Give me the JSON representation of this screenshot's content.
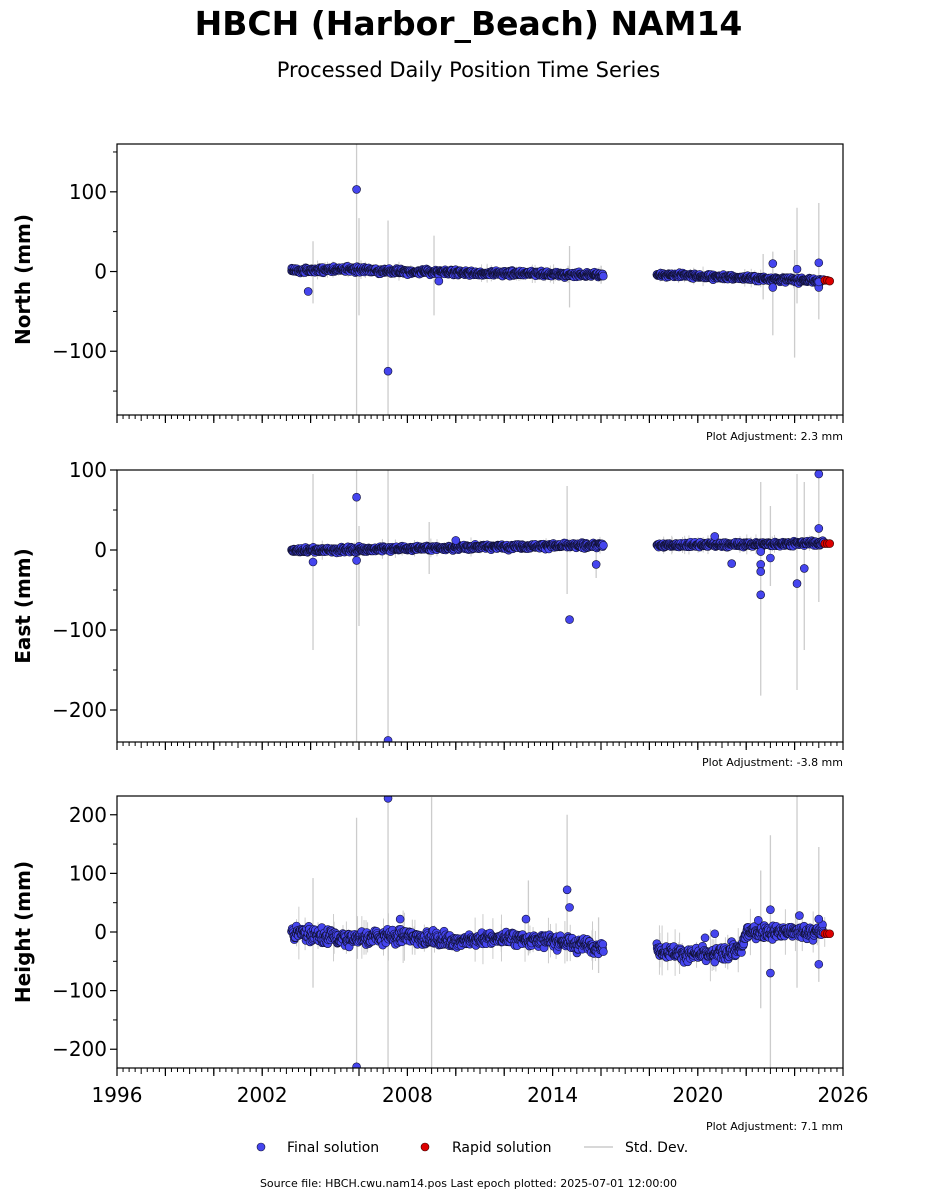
{
  "header": {
    "title": "HBCH (Harbor_Beach) NAM14",
    "subtitle": "Processed Daily Position Time Series"
  },
  "chart_data": [
    {
      "type": "scatter",
      "ylabel": "North (mm)",
      "xlim": [
        1996,
        2026
      ],
      "ylim": [
        -180,
        160
      ],
      "yticks": [
        100,
        0,
        -100
      ],
      "ytick_labels": [
        "100",
        "0",
        "−100"
      ],
      "adjustment": "Plot Adjustment: 2.3 mm",
      "trend": [
        [
          2003.2,
          1
        ],
        [
          2005.5,
          3
        ],
        [
          2008,
          0
        ],
        [
          2011,
          -2
        ],
        [
          2016,
          -4
        ],
        [
          2018.3,
          -4
        ],
        [
          2022,
          -8
        ],
        [
          2025.3,
          -12
        ]
      ],
      "scatter": 2.5,
      "outliers": [
        [
          2003.9,
          -25
        ],
        [
          2005.9,
          103
        ],
        [
          2007.2,
          -125
        ],
        [
          2009.3,
          -12
        ],
        [
          2023.1,
          10
        ],
        [
          2023.1,
          -20
        ],
        [
          2024.1,
          3
        ],
        [
          2025,
          11
        ],
        [
          2025,
          -20
        ],
        [
          2025,
          -13
        ]
      ],
      "errorbars": [
        [
          2004.1,
          -40,
          38
        ],
        [
          2005.9,
          -190,
          170
        ],
        [
          2006.0,
          -55,
          67
        ],
        [
          2007.2,
          -190,
          64
        ],
        [
          2009.1,
          -55,
          45
        ],
        [
          2014.7,
          -45,
          32
        ],
        [
          2022.7,
          -35,
          22
        ],
        [
          2023.1,
          -80,
          25
        ],
        [
          2024.0,
          -108,
          27
        ],
        [
          2024.1,
          -40,
          80
        ],
        [
          2025.0,
          -60,
          86
        ]
      ],
      "rapid": [
        [
          2025.25,
          -11
        ],
        [
          2025.35,
          -11
        ],
        [
          2025.45,
          -12
        ]
      ]
    },
    {
      "type": "scatter",
      "ylabel": "East (mm)",
      "xlim": [
        1996,
        2026
      ],
      "ylim": [
        -240,
        100
      ],
      "yticks": [
        100,
        0,
        -100,
        -200
      ],
      "ytick_labels": [
        "100",
        "0",
        "−100",
        "−200"
      ],
      "adjustment": "Plot Adjustment: -3.8 mm",
      "trend": [
        [
          2003.2,
          -1
        ],
        [
          2008,
          2
        ],
        [
          2011,
          4
        ],
        [
          2016,
          6
        ],
        [
          2018.3,
          6
        ],
        [
          2022,
          7
        ],
        [
          2025.3,
          9
        ]
      ],
      "scatter": 2.5,
      "outliers": [
        [
          2004.1,
          -15
        ],
        [
          2005.9,
          66
        ],
        [
          2005.9,
          -13
        ],
        [
          2007.2,
          -238
        ],
        [
          2010,
          12
        ],
        [
          2014.7,
          -87
        ],
        [
          2015.8,
          -18
        ],
        [
          2020.7,
          17
        ],
        [
          2021.4,
          -17
        ],
        [
          2022.6,
          -2
        ],
        [
          2022.6,
          -18
        ],
        [
          2022.6,
          -27
        ],
        [
          2022.6,
          -56
        ],
        [
          2023.0,
          -10
        ],
        [
          2024.1,
          -42
        ],
        [
          2024.4,
          -23
        ],
        [
          2025,
          95
        ],
        [
          2025,
          27
        ]
      ],
      "errorbars": [
        [
          2004.1,
          -125,
          95
        ],
        [
          2005.9,
          -250,
          110
        ],
        [
          2006.0,
          -95,
          30
        ],
        [
          2007.2,
          -250,
          110
        ],
        [
          2008.9,
          -30,
          35
        ],
        [
          2014.6,
          -55,
          80
        ],
        [
          2015.8,
          -35,
          10
        ],
        [
          2022.6,
          -182,
          85
        ],
        [
          2023.0,
          -45,
          55
        ],
        [
          2024.1,
          -175,
          95
        ],
        [
          2024.4,
          -125,
          85
        ],
        [
          2025,
          -65,
          100
        ]
      ],
      "rapid": [
        [
          2025.25,
          8
        ],
        [
          2025.35,
          8
        ],
        [
          2025.45,
          8
        ]
      ]
    },
    {
      "type": "scatter",
      "ylabel": "Height (mm)",
      "xlim": [
        1996,
        2026
      ],
      "ylim": [
        -232,
        232
      ],
      "yticks": [
        200,
        100,
        0,
        -100,
        -200
      ],
      "ytick_labels": [
        "200",
        "100",
        "0",
        "−100",
        "−200"
      ],
      "xticks": [
        1996,
        2002,
        2008,
        2014,
        2020,
        2026
      ],
      "xtick_labels": [
        "1996",
        "2002",
        "2008",
        "2014",
        "2020",
        "2026"
      ],
      "adjustment": "Plot Adjustment: 7.1 mm",
      "trend": [
        [
          2003.2,
          0
        ],
        [
          2005,
          -10
        ],
        [
          2008,
          -8
        ],
        [
          2010,
          -15
        ],
        [
          2012,
          -10
        ],
        [
          2014,
          -15
        ],
        [
          2016,
          -25
        ],
        [
          2018.3,
          -30
        ],
        [
          2019.5,
          -38
        ],
        [
          2020.5,
          -40
        ],
        [
          2021.8,
          -30
        ],
        [
          2022,
          0
        ],
        [
          2025.3,
          0
        ]
      ],
      "scatter": 9,
      "outliers": [
        [
          2005.9,
          -230
        ],
        [
          2007.2,
          228
        ],
        [
          2007.7,
          22
        ],
        [
          2012.9,
          22
        ],
        [
          2014.6,
          72
        ],
        [
          2014.7,
          42
        ],
        [
          2020.3,
          -10
        ],
        [
          2020.7,
          -3
        ],
        [
          2022.5,
          20
        ],
        [
          2023.0,
          38
        ],
        [
          2023.0,
          -70
        ],
        [
          2024.2,
          28
        ],
        [
          2025,
          22
        ],
        [
          2025,
          -55
        ]
      ],
      "errorbars": [
        [
          2004.1,
          -95,
          92
        ],
        [
          2005.9,
          -250,
          195
        ],
        [
          2007.2,
          -250,
          230
        ],
        [
          2009.0,
          -250,
          230
        ],
        [
          2013.0,
          -40,
          88
        ],
        [
          2014.6,
          -50,
          200
        ],
        [
          2015.9,
          -70,
          25
        ],
        [
          2022.6,
          -130,
          105
        ],
        [
          2023.0,
          -250,
          165
        ],
        [
          2024.1,
          -95,
          232
        ],
        [
          2025,
          -85,
          145
        ]
      ],
      "rapid": [
        [
          2025.25,
          -3
        ],
        [
          2025.35,
          -3
        ],
        [
          2025.45,
          -3
        ]
      ]
    }
  ],
  "legend": {
    "final": "Final solution",
    "rapid": "Rapid solution",
    "stddev": "Std. Dev.",
    "final_color": "#4545ee",
    "rapid_color": "#dd0000",
    "stddev_color": "#cccccc"
  },
  "footer": {
    "source": "Source file: HBCH.cwu.nam14.pos  Last epoch plotted: 2025-07-01 12:00:00"
  }
}
